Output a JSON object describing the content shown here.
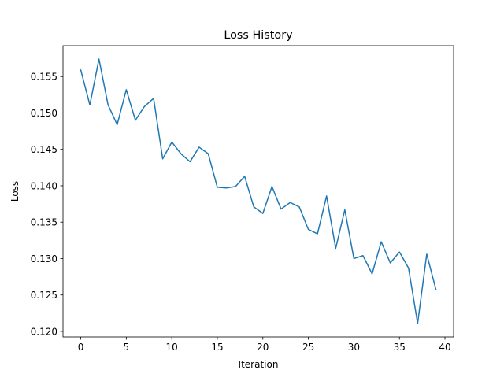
{
  "chart_data": {
    "type": "line",
    "title": "Loss History",
    "xlabel": "Iteration",
    "ylabel": "Loss",
    "xlim": [
      -1.95,
      40.95
    ],
    "ylim": [
      0.11924,
      0.15924
    ],
    "xticks": [
      0,
      5,
      10,
      15,
      20,
      25,
      30,
      35,
      40
    ],
    "xtick_labels": [
      "0",
      "5",
      "10",
      "15",
      "20",
      "25",
      "30",
      "35",
      "40"
    ],
    "yticks": [
      0.12,
      0.125,
      0.13,
      0.135,
      0.14,
      0.145,
      0.15,
      0.155
    ],
    "ytick_labels": [
      "0.120",
      "0.125",
      "0.130",
      "0.135",
      "0.140",
      "0.145",
      "0.150",
      "0.155"
    ],
    "grid": false,
    "line_color": "#1f77b4",
    "series": [
      {
        "x": [
          0,
          1,
          2,
          3,
          4,
          5,
          6,
          7,
          8,
          9,
          10,
          11,
          12,
          13,
          14,
          15,
          16,
          17,
          18,
          19,
          20,
          21,
          22,
          23,
          24,
          25,
          26,
          27,
          28,
          29,
          30,
          31,
          32,
          33,
          34,
          35,
          36,
          37,
          38,
          39
        ],
        "values": [
          0.1559,
          0.1511,
          0.1574,
          0.1511,
          0.1484,
          0.1532,
          0.149,
          0.1509,
          0.152,
          0.1437,
          0.146,
          0.1444,
          0.1433,
          0.1453,
          0.1444,
          0.1398,
          0.1397,
          0.1399,
          0.1413,
          0.1371,
          0.1362,
          0.1399,
          0.1368,
          0.1377,
          0.1371,
          0.134,
          0.1334,
          0.1386,
          0.1314,
          0.1367,
          0.13,
          0.1304,
          0.1279,
          0.1323,
          0.1294,
          0.1309,
          0.1287,
          0.1211,
          0.1306,
          0.1258
        ]
      }
    ]
  }
}
